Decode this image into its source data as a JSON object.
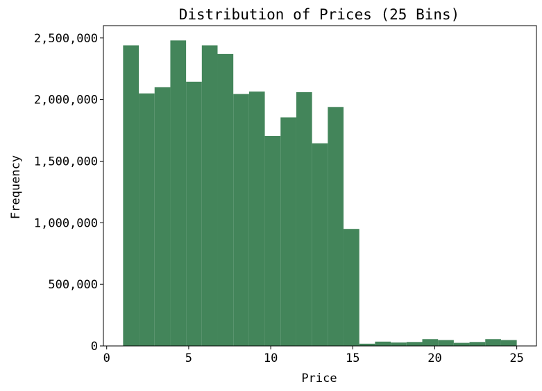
{
  "chart_data": {
    "type": "bar",
    "title": "Distribution of Prices (25 Bins)",
    "xlabel": "Price",
    "ylabel": "Frequency",
    "xlim": [
      -0.2,
      26.2
    ],
    "ylim": [
      0,
      2600000
    ],
    "grid": false,
    "legend": "none",
    "bar_color": "#43855a",
    "bins": [
      {
        "x0": 1.0,
        "x1": 1.96,
        "value": 2440000
      },
      {
        "x0": 1.96,
        "x1": 2.92,
        "value": 2050000
      },
      {
        "x0": 2.92,
        "x1": 3.88,
        "value": 2100000
      },
      {
        "x0": 3.88,
        "x1": 4.84,
        "value": 2480000
      },
      {
        "x0": 4.84,
        "x1": 5.8,
        "value": 2145000
      },
      {
        "x0": 5.8,
        "x1": 6.76,
        "value": 2440000
      },
      {
        "x0": 6.76,
        "x1": 7.72,
        "value": 2370000
      },
      {
        "x0": 7.72,
        "x1": 8.68,
        "value": 2045000
      },
      {
        "x0": 8.68,
        "x1": 9.64,
        "value": 2065000
      },
      {
        "x0": 9.64,
        "x1": 10.6,
        "value": 1705000
      },
      {
        "x0": 10.6,
        "x1": 11.56,
        "value": 1855000
      },
      {
        "x0": 11.56,
        "x1": 12.52,
        "value": 2060000
      },
      {
        "x0": 12.52,
        "x1": 13.48,
        "value": 1645000
      },
      {
        "x0": 13.48,
        "x1": 14.44,
        "value": 1940000
      },
      {
        "x0": 14.44,
        "x1": 15.4,
        "value": 950000
      },
      {
        "x0": 15.4,
        "x1": 16.36,
        "value": 18000
      },
      {
        "x0": 16.36,
        "x1": 17.32,
        "value": 35000
      },
      {
        "x0": 17.32,
        "x1": 18.28,
        "value": 28000
      },
      {
        "x0": 18.28,
        "x1": 19.24,
        "value": 32000
      },
      {
        "x0": 19.24,
        "x1": 20.2,
        "value": 55000
      },
      {
        "x0": 20.2,
        "x1": 21.16,
        "value": 48000
      },
      {
        "x0": 21.16,
        "x1": 22.12,
        "value": 25000
      },
      {
        "x0": 22.12,
        "x1": 23.08,
        "value": 32000
      },
      {
        "x0": 23.08,
        "x1": 24.04,
        "value": 55000
      },
      {
        "x0": 24.04,
        "x1": 25.0,
        "value": 48000
      }
    ],
    "x_ticks": [
      0,
      5,
      10,
      15,
      20,
      25
    ],
    "x_tick_labels": [
      "0",
      "5",
      "10",
      "15",
      "20",
      "25"
    ],
    "y_ticks": [
      0,
      500000,
      1000000,
      1500000,
      2000000,
      2500000
    ],
    "y_tick_labels": [
      "0",
      "500,000",
      "1,000,000",
      "1,500,000",
      "2,000,000",
      "2,500,000"
    ]
  }
}
